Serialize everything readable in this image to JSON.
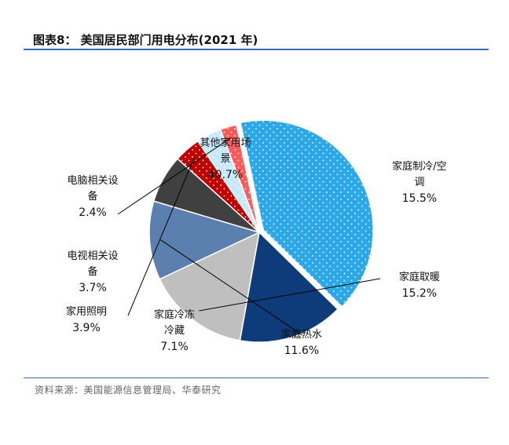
{
  "header": {
    "title": "图表8： 美国居民部门用电分布(2021 年)"
  },
  "footer": {
    "source": "资料来源：美国能源信息管理局、华泰研究"
  },
  "chart_data": {
    "type": "pie",
    "slices": [
      {
        "name": "其他家用场景",
        "label_lines": [
          "其他家用场",
          "景"
        ],
        "label": "40.7%",
        "value": 40.7,
        "color": "#2ca8e8",
        "pattern": "dots",
        "label_color": "#111111"
      },
      {
        "name": "家庭制冷/空调",
        "label_lines": [
          "家庭制冷/空",
          "调"
        ],
        "label": "15.5%",
        "value": 15.5,
        "color": "#0e3b7a",
        "pattern": "none",
        "label_color": "#111111"
      },
      {
        "name": "家庭取暖",
        "label_lines": [
          "家庭取暖"
        ],
        "label": "15.2%",
        "value": 15.2,
        "color": "#bfbfbf",
        "pattern": "none",
        "label_color": "#111111"
      },
      {
        "name": "家庭热水",
        "label_lines": [
          "家庭热水"
        ],
        "label": "11.6%",
        "value": 11.6,
        "color": "#5b80b0",
        "pattern": "none",
        "label_color": "#111111"
      },
      {
        "name": "家庭冷冻冷藏",
        "label_lines": [
          "家庭冷冻",
          "冷藏"
        ],
        "label": "7.1%",
        "value": 7.1,
        "color": "#404040",
        "pattern": "none",
        "label_color": "#111111"
      },
      {
        "name": "家用照明",
        "label_lines": [
          "家用照明"
        ],
        "label": "3.9%",
        "value": 3.9,
        "color": "#c00000",
        "pattern": "dots",
        "label_color": "#111111"
      },
      {
        "name": "电视相关设备",
        "label_lines": [
          "电视相关设",
          "备"
        ],
        "label": "3.7%",
        "value": 3.7,
        "color": "#c7e9fb",
        "pattern": "dots",
        "label_color": "#111111"
      },
      {
        "name": "电脑相关设备",
        "label_lines": [
          "电脑相关设",
          "备"
        ],
        "label": "2.4%",
        "value": 2.4,
        "color": "#ff5a5a",
        "pattern": "dots",
        "label_color": "#111111"
      }
    ],
    "start_angle_deg": -102,
    "direction": "clockwise",
    "legend": "none"
  }
}
